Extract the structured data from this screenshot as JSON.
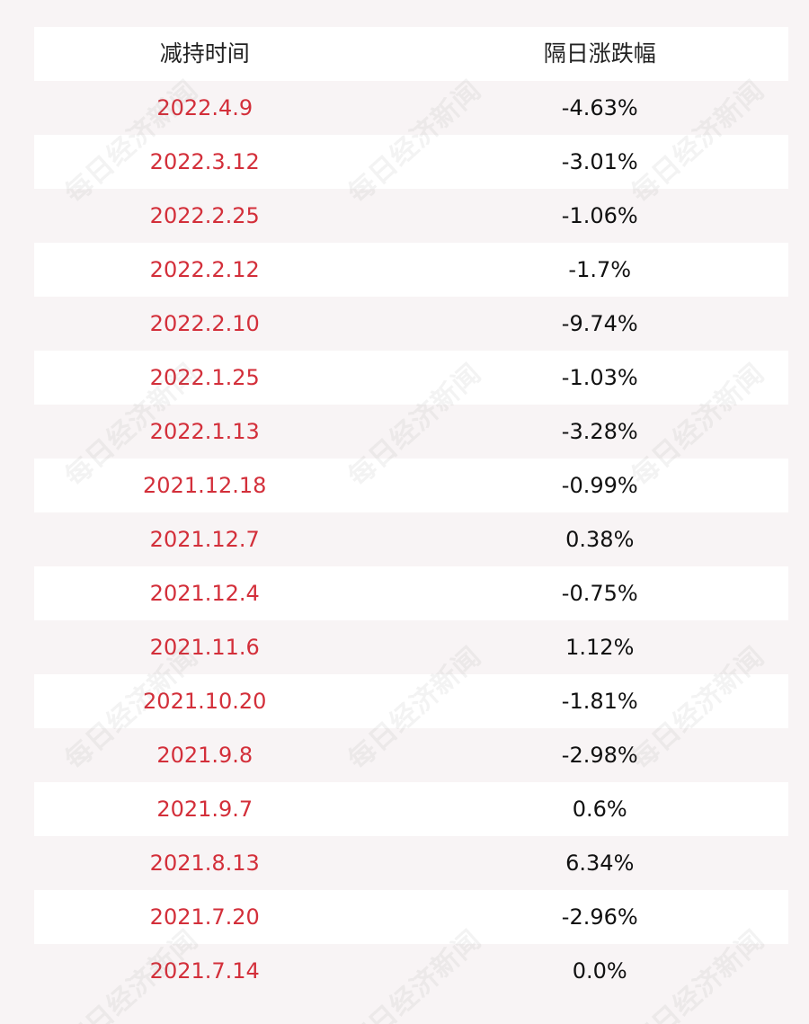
{
  "table": {
    "headers": {
      "date": "减持时间",
      "change": "隔日涨跌幅"
    },
    "rows": [
      {
        "date": "2022.4.9",
        "change": "-4.63%"
      },
      {
        "date": "2022.3.12",
        "change": "-3.01%"
      },
      {
        "date": "2022.2.25",
        "change": "-1.06%"
      },
      {
        "date": "2022.2.12",
        "change": "-1.7%"
      },
      {
        "date": "2022.2.10",
        "change": "-9.74%"
      },
      {
        "date": "2022.1.25",
        "change": "-1.03%"
      },
      {
        "date": "2022.1.13",
        "change": "-3.28%"
      },
      {
        "date": "2021.12.18",
        "change": "-0.99%"
      },
      {
        "date": "2021.12.7",
        "change": "0.38%"
      },
      {
        "date": "2021.12.4",
        "change": "-0.75%"
      },
      {
        "date": "2021.11.6",
        "change": "1.12%"
      },
      {
        "date": "2021.10.20",
        "change": "-1.81%"
      },
      {
        "date": "2021.9.8",
        "change": "-2.98%"
      },
      {
        "date": "2021.9.7",
        "change": "0.6%"
      },
      {
        "date": "2021.8.13",
        "change": "6.34%"
      },
      {
        "date": "2021.7.20",
        "change": "-2.96%"
      },
      {
        "date": "2021.7.14",
        "change": "0.0%"
      }
    ]
  },
  "watermark": {
    "text": "每日经济新闻"
  },
  "colors": {
    "date_text": "#d32f3a",
    "value_text": "#111111",
    "background": "#f8f4f5",
    "row_white": "#ffffff"
  }
}
